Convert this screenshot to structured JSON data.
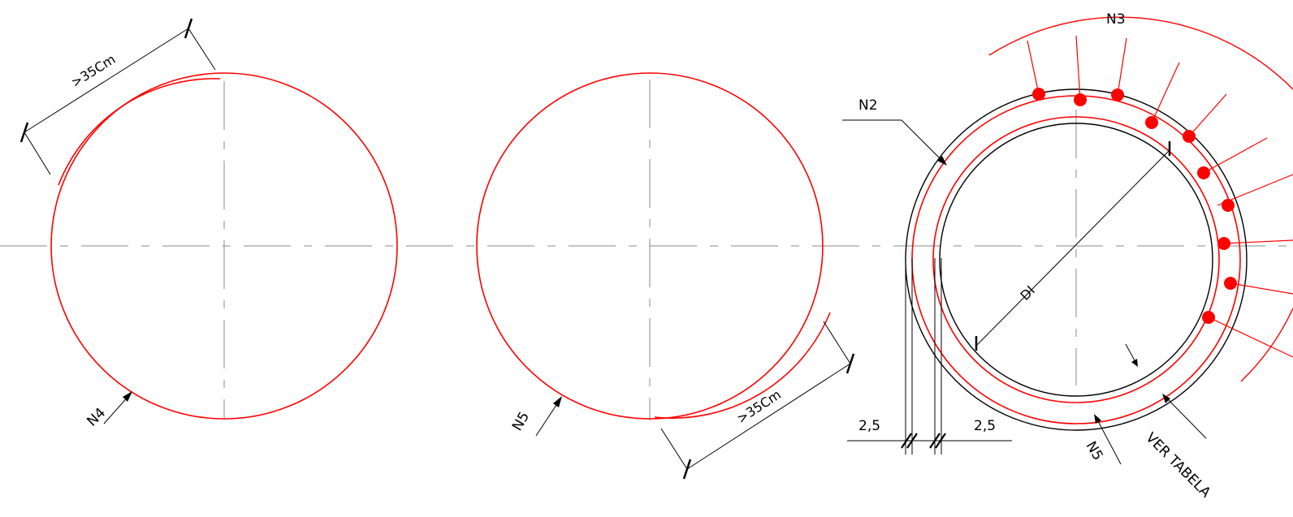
{
  "labels": {
    "dim_left": ">35Cm",
    "dim_mid": ">35Cm",
    "n4": "N4",
    "n5_mid": "N5",
    "n2": "N2",
    "n3": "N3",
    "di": "DI",
    "cover_left": "2,5",
    "cover_right": "2,5",
    "n5_right": "N5",
    "ver_tabela": "VER TABELA"
  },
  "colors": {
    "rebar": "#ff0000",
    "concrete": "#000000",
    "centerline": "#888888",
    "background": "#ffffff"
  }
}
